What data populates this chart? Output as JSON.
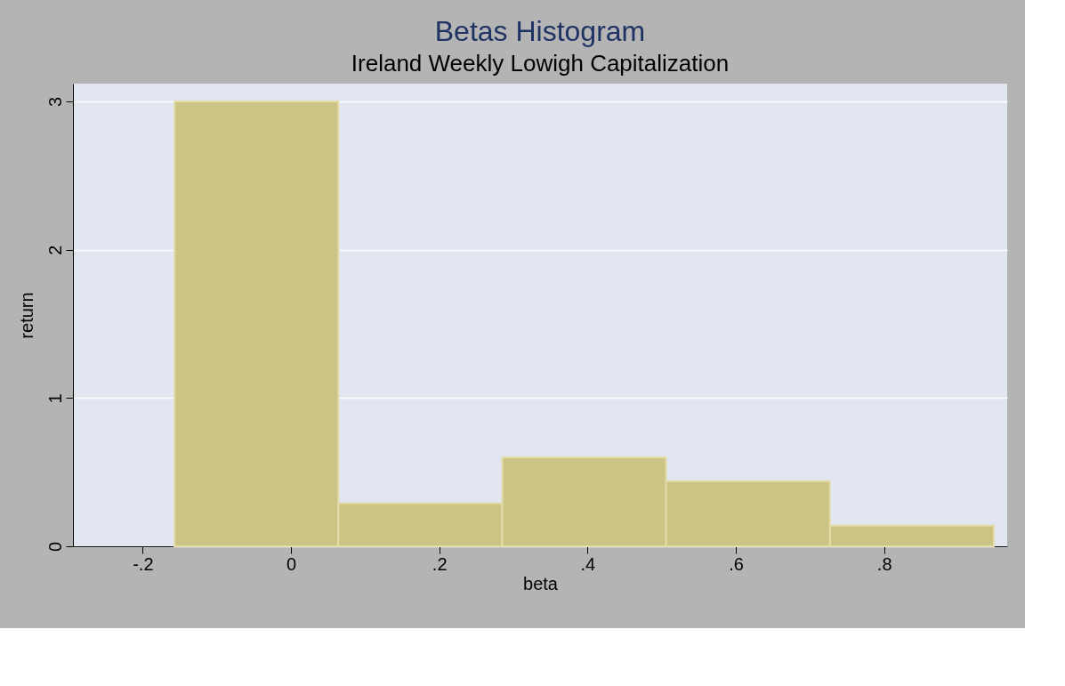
{
  "chart_data": {
    "type": "histogram",
    "title": "Betas Histogram",
    "subtitle": "Ireland Weekly Lowigh Capitalization",
    "xlabel": "beta",
    "ylabel": "return",
    "bins": [
      -0.157,
      0.064,
      0.285,
      0.506,
      0.727,
      0.948
    ],
    "values": [
      3.0,
      0.29,
      0.6,
      0.44,
      0.14
    ],
    "color": "#ccc484",
    "xlim": [
      -0.294,
      0.966
    ],
    "ylim": [
      0,
      3.12
    ],
    "xticks": [
      {
        "value": -0.2,
        "label": "-.2"
      },
      0,
      {
        "value": 0.2,
        "label": ".2"
      },
      {
        "value": 0.4,
        "label": ".4"
      },
      {
        "value": 0.6,
        "label": ".6"
      },
      {
        "value": 0.8,
        "label": ".8"
      }
    ],
    "yticks": [
      0,
      1,
      2,
      3
    ],
    "grid": "y"
  }
}
